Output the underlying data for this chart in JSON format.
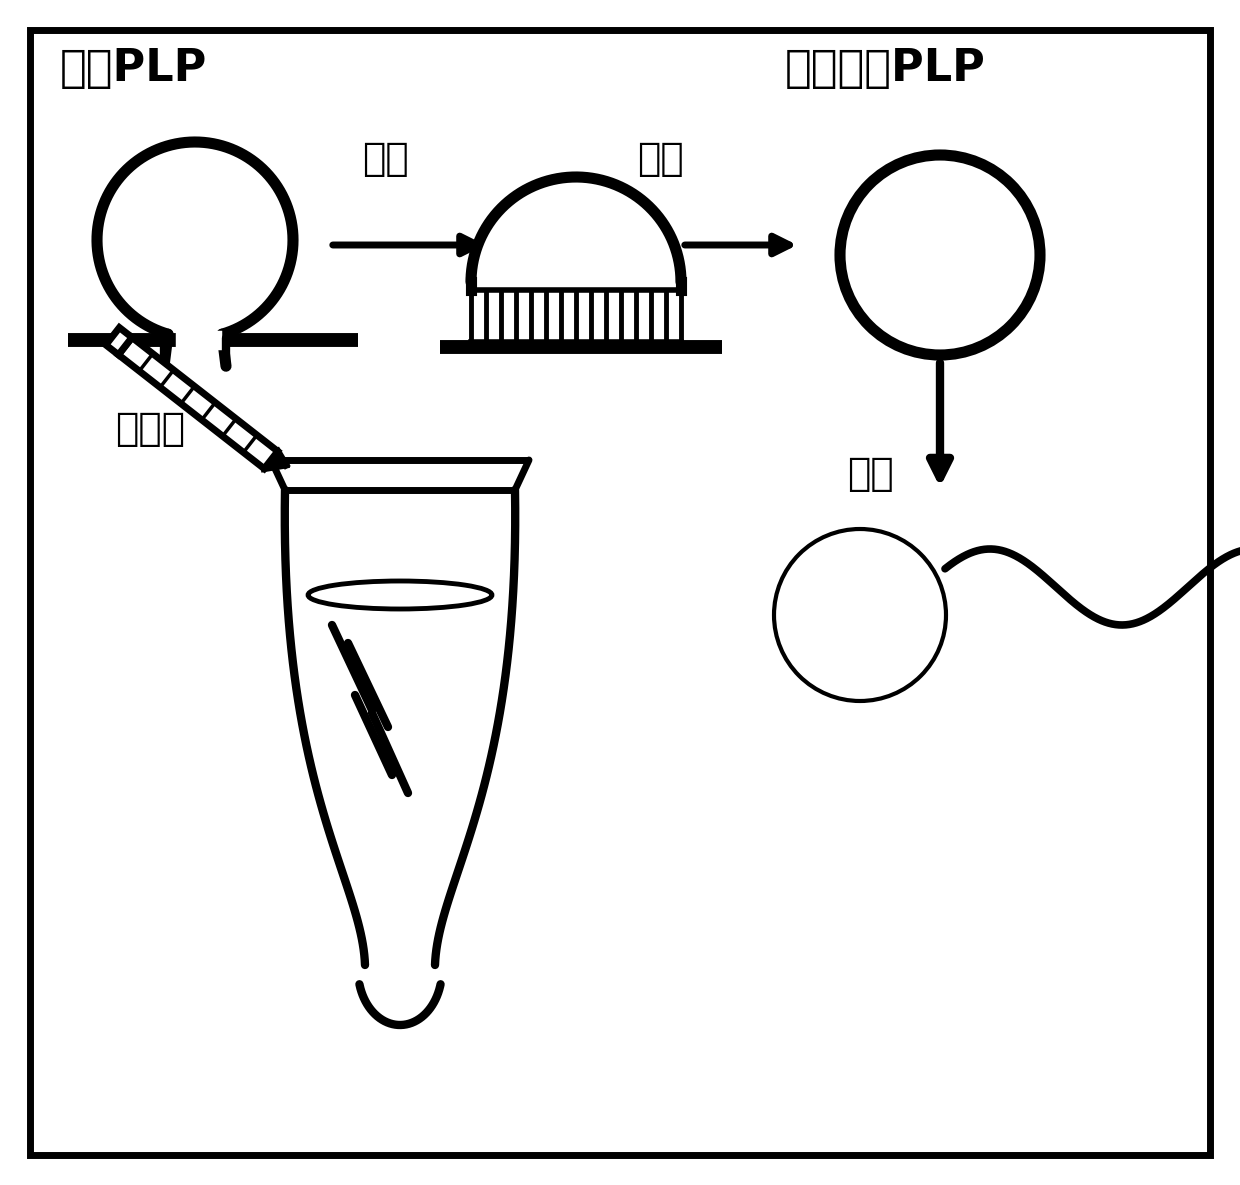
{
  "bg_color": "#ffffff",
  "border_color": "#000000",
  "label_linear_plp": "线性PLP",
  "label_target": "靶序列",
  "label_hybridize": "杂交",
  "label_ligate": "连接",
  "label_lock_plp": "锁式探针PLP",
  "label_amplify": "扩增",
  "figsize": [
    12.4,
    11.85
  ],
  "dpi": 100
}
